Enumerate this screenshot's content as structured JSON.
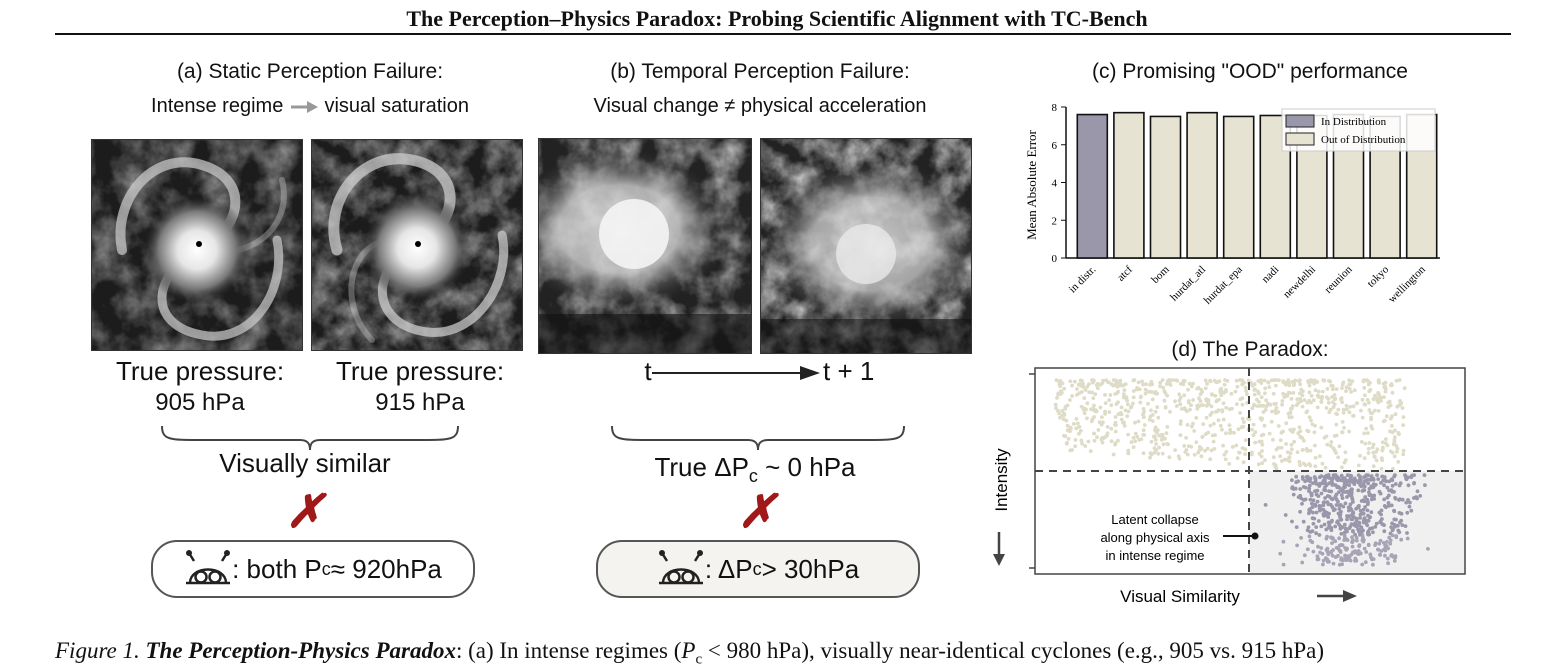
{
  "header": {
    "title": "The Perception–Physics Paradox: Probing Scientific Alignment with TC-Bench"
  },
  "panel_a": {
    "title": "(a) Static Perception Failure:",
    "subtitle_left": "Intense regime",
    "subtitle_right": "visual saturation",
    "label1_line1": "True pressure:",
    "label1_line2": "905 hPa",
    "label2_line1": "True pressure:",
    "label2_line2": "915 hPa",
    "similar": "Visually similar",
    "cross": "✗",
    "model_text": ": both P",
    "model_sub": "c",
    "model_value": " ≈ 920hPa"
  },
  "panel_b": {
    "title": "(b) Temporal Perception Failure:",
    "subtitle_left": "Visual change",
    "subtitle_neq": "≠",
    "subtitle_right": "physical acceleration",
    "t_left": "t",
    "t_right": "t + 1",
    "true_prefix": "True ΔP",
    "true_sub": "c",
    "true_value": " ~ 0 hPa",
    "cross": "✗",
    "model_prefix": ": ΔP",
    "model_sub": "c",
    "model_value": " > 30hPa"
  },
  "panel_c": {
    "title": "(c) Promising \"OOD\" performance"
  },
  "panel_d": {
    "title": "(d) The Paradox:",
    "ylabel": "Intensity",
    "xlabel": "Visual Similarity",
    "annotation": [
      "Latent collapse",
      "along physical axis",
      "in intense regime"
    ]
  },
  "caption": {
    "fig": "Figure 1.",
    "bold": "The Perception-Physics Paradox",
    "rest1": ": (a) In intense regimes (",
    "var": "P",
    "var_sub": "c",
    "rest2": " < 980 hPa), visually near-identical cyclones (e.g., 905 vs. 915 hPa)"
  },
  "chart_data": {
    "type": "bar",
    "categories": [
      "in distr.",
      "atcf",
      "bom",
      "hurdat_atl",
      "hurdat_epa",
      "nadi",
      "newdelhi",
      "reunion",
      "tokyo",
      "wellington"
    ],
    "series": [
      {
        "name": "In Distribution",
        "values": [
          7.6,
          null,
          null,
          null,
          null,
          null,
          null,
          null,
          null,
          null
        ]
      },
      {
        "name": "Out of Distribution",
        "values": [
          null,
          7.7,
          7.5,
          7.7,
          7.5,
          7.55,
          7.55,
          7.6,
          7.5,
          7.6
        ]
      }
    ],
    "ylabel": "Mean Absolute Error",
    "ylim": [
      0,
      8
    ],
    "yticks": [
      0,
      2,
      4,
      6,
      8
    ],
    "legend_position": "top-right",
    "colors": {
      "in": "#9b97ab",
      "out": "#e6e3d3"
    }
  }
}
